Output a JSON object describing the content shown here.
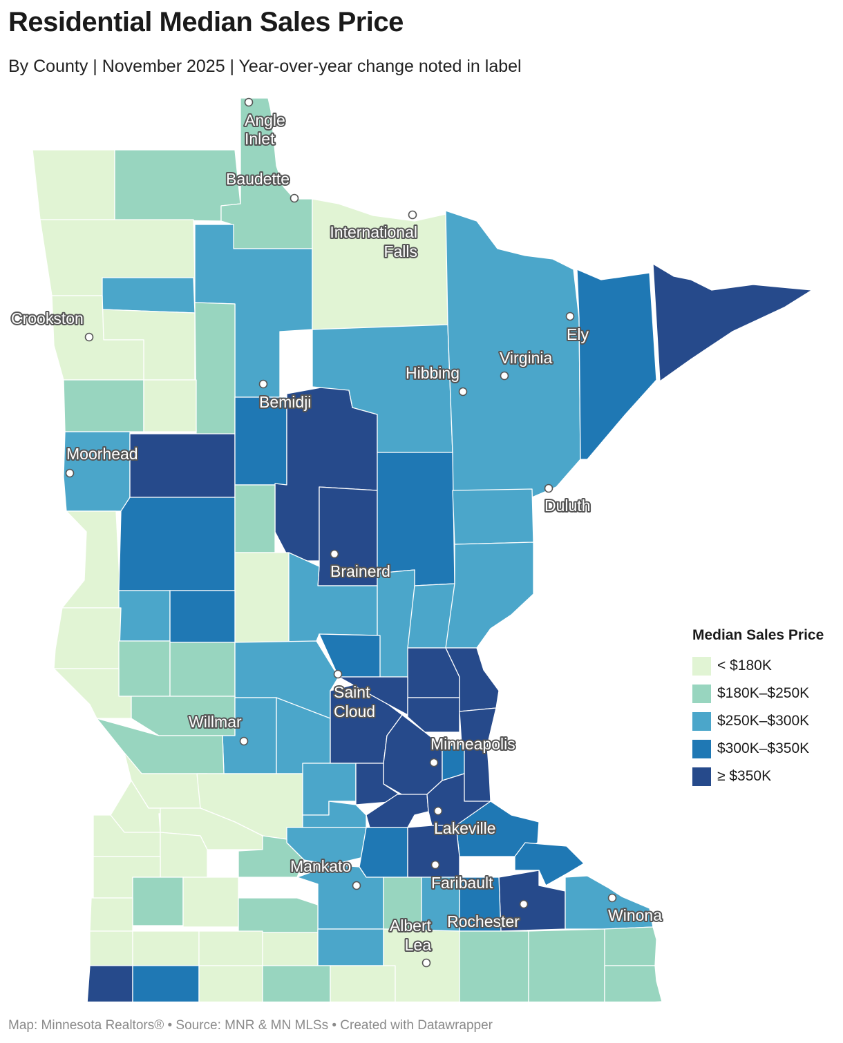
{
  "title": "Residential Median Sales Price",
  "subtitle": "By County | November 2025 | Year-over-year change noted in label",
  "footer": "Map: Minnesota Realtors® • Source: MNR & MN MLSs • Created with Datawrapper",
  "legend": {
    "title": "Median Sales Price",
    "items": [
      {
        "label": "< $180K",
        "color": "#e1f4d4"
      },
      {
        "label": "$180K–$250K",
        "color": "#98d5bf"
      },
      {
        "label": "$250K–$300K",
        "color": "#4ba6ca"
      },
      {
        "label": "$300K–$350K",
        "color": "#1f78b4"
      },
      {
        "label": "≥ $350K",
        "color": "#264a8b"
      }
    ]
  },
  "cities": [
    "Angle Inlet",
    "Baudette",
    "International Falls",
    "Crookston",
    "Ely",
    "Virginia",
    "Hibbing",
    "Bemidji",
    "Moorhead",
    "Duluth",
    "Brainerd",
    "Saint Cloud",
    "Willmar",
    "Minneapolis",
    "Lakeville",
    "Mankato",
    "Faribault",
    "Rochester",
    "Albert Lea",
    "Winona"
  ]
}
